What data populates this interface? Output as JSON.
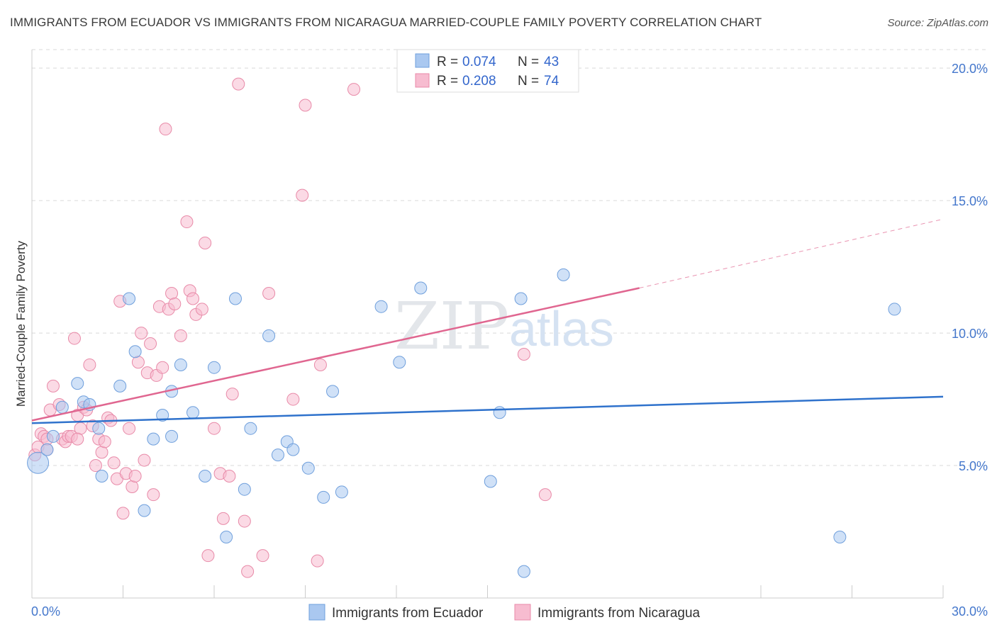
{
  "title": "IMMIGRANTS FROM ECUADOR VS IMMIGRANTS FROM NICARAGUA MARRIED-COUPLE FAMILY POVERTY CORRELATION CHART",
  "source": "Source: ZipAtlas.com",
  "watermark": {
    "zip": "ZIP",
    "atlas": "atlas"
  },
  "legend": {
    "r_label": "R =",
    "n_label": "N =",
    "rows": [
      {
        "r": "0.074",
        "n": "43"
      },
      {
        "r": "0.208",
        "n": "74"
      }
    ]
  },
  "colors": {
    "ecuador_fill": "#aac8f0",
    "ecuador_stroke": "#6f9fdc",
    "ecuador_line": "#2f72cc",
    "nicaragua_fill": "#f7bcd0",
    "nicaragua_stroke": "#e88aa8",
    "nicaragua_line": "#e06690",
    "grid": "#d9d9d9"
  },
  "chart_data": {
    "type": "scatter",
    "title": "IMMIGRANTS FROM ECUADOR VS IMMIGRANTS FROM NICARAGUA MARRIED-COUPLE FAMILY POVERTY CORRELATION CHART",
    "xlabel": "",
    "ylabel": "Married-Couple Family Poverty",
    "xlim": [
      0,
      30
    ],
    "ylim": [
      0,
      20.7
    ],
    "x_tick_labels": [
      "0.0%",
      "30.0%"
    ],
    "y_ticks": [
      5,
      10,
      15,
      20
    ],
    "y_tick_labels": [
      "5.0%",
      "10.0%",
      "15.0%",
      "20.0%"
    ],
    "grid": "horizontal dashed",
    "legend_position": "top-center",
    "series": [
      {
        "name": "Immigrants from Ecuador",
        "r": 0.074,
        "n": 43,
        "trend": {
          "x": [
            0,
            30
          ],
          "y": [
            6.6,
            7.6
          ]
        },
        "points": [
          [
            0.2,
            5.1
          ],
          [
            0.5,
            5.6
          ],
          [
            0.7,
            6.1
          ],
          [
            1.0,
            7.2
          ],
          [
            1.5,
            8.1
          ],
          [
            1.7,
            7.4
          ],
          [
            1.9,
            7.3
          ],
          [
            2.2,
            6.4
          ],
          [
            2.3,
            4.6
          ],
          [
            2.9,
            8.0
          ],
          [
            3.2,
            11.3
          ],
          [
            3.4,
            9.3
          ],
          [
            3.7,
            3.3
          ],
          [
            4.0,
            6.0
          ],
          [
            4.3,
            6.9
          ],
          [
            4.6,
            7.8
          ],
          [
            4.9,
            8.8
          ],
          [
            4.6,
            6.1
          ],
          [
            5.7,
            4.6
          ],
          [
            5.3,
            7.0
          ],
          [
            6.0,
            8.7
          ],
          [
            6.4,
            2.3
          ],
          [
            6.7,
            11.3
          ],
          [
            7.0,
            4.1
          ],
          [
            7.2,
            6.4
          ],
          [
            7.8,
            9.9
          ],
          [
            8.1,
            5.4
          ],
          [
            8.4,
            5.9
          ],
          [
            8.6,
            5.6
          ],
          [
            9.1,
            4.9
          ],
          [
            9.6,
            3.8
          ],
          [
            9.9,
            7.8
          ],
          [
            10.2,
            4.0
          ],
          [
            11.5,
            11.0
          ],
          [
            12.1,
            8.9
          ],
          [
            12.8,
            11.7
          ],
          [
            15.1,
            4.4
          ],
          [
            15.4,
            7.0
          ],
          [
            16.1,
            11.3
          ],
          [
            16.2,
            1.0
          ],
          [
            17.5,
            12.2
          ],
          [
            26.6,
            2.3
          ],
          [
            28.4,
            10.9
          ]
        ]
      },
      {
        "name": "Immigrants from Nicaragua",
        "r": 0.208,
        "n": 74,
        "trend": {
          "x": [
            0,
            20
          ],
          "y": [
            6.7,
            11.7
          ]
        },
        "trend_dashed": {
          "x": [
            20,
            30
          ],
          "y": [
            11.7,
            14.3
          ]
        },
        "points": [
          [
            0.1,
            5.4
          ],
          [
            0.2,
            5.7
          ],
          [
            0.3,
            6.2
          ],
          [
            0.4,
            6.1
          ],
          [
            0.5,
            5.6
          ],
          [
            0.6,
            7.1
          ],
          [
            0.7,
            8.0
          ],
          [
            0.9,
            7.3
          ],
          [
            1.0,
            6.0
          ],
          [
            1.1,
            5.9
          ],
          [
            1.2,
            6.1
          ],
          [
            1.3,
            6.1
          ],
          [
            1.4,
            9.8
          ],
          [
            1.5,
            6.9
          ],
          [
            1.6,
            6.4
          ],
          [
            1.7,
            7.2
          ],
          [
            1.8,
            7.1
          ],
          [
            1.9,
            8.8
          ],
          [
            2.0,
            6.5
          ],
          [
            2.1,
            5.0
          ],
          [
            2.2,
            6.0
          ],
          [
            2.3,
            5.5
          ],
          [
            2.4,
            5.9
          ],
          [
            2.5,
            6.8
          ],
          [
            2.6,
            6.7
          ],
          [
            2.7,
            5.1
          ],
          [
            2.8,
            4.5
          ],
          [
            2.9,
            11.2
          ],
          [
            3.0,
            3.2
          ],
          [
            3.1,
            4.7
          ],
          [
            3.2,
            6.4
          ],
          [
            3.3,
            4.2
          ],
          [
            3.4,
            4.6
          ],
          [
            3.5,
            8.9
          ],
          [
            3.6,
            10.0
          ],
          [
            3.7,
            5.2
          ],
          [
            3.8,
            8.5
          ],
          [
            3.9,
            9.6
          ],
          [
            4.0,
            3.9
          ],
          [
            4.1,
            8.4
          ],
          [
            4.2,
            11.0
          ],
          [
            4.3,
            8.7
          ],
          [
            4.4,
            17.7
          ],
          [
            4.5,
            10.9
          ],
          [
            4.6,
            11.5
          ],
          [
            4.7,
            11.1
          ],
          [
            4.9,
            9.9
          ],
          [
            5.1,
            14.2
          ],
          [
            5.2,
            11.6
          ],
          [
            5.3,
            11.3
          ],
          [
            5.4,
            10.7
          ],
          [
            5.6,
            10.9
          ],
          [
            5.7,
            13.4
          ],
          [
            5.8,
            1.6
          ],
          [
            6.0,
            6.4
          ],
          [
            6.2,
            4.7
          ],
          [
            6.3,
            3.0
          ],
          [
            6.5,
            4.6
          ],
          [
            6.6,
            7.7
          ],
          [
            6.8,
            19.4
          ],
          [
            7.0,
            2.9
          ],
          [
            7.1,
            1.0
          ],
          [
            7.6,
            1.6
          ],
          [
            7.8,
            11.5
          ],
          [
            8.6,
            7.5
          ],
          [
            8.9,
            15.2
          ],
          [
            9.0,
            18.6
          ],
          [
            9.4,
            1.4
          ],
          [
            9.5,
            8.8
          ],
          [
            10.6,
            19.2
          ],
          [
            16.2,
            9.2
          ],
          [
            16.9,
            3.9
          ],
          [
            0.5,
            6.0
          ],
          [
            1.5,
            6.0
          ]
        ]
      }
    ]
  }
}
